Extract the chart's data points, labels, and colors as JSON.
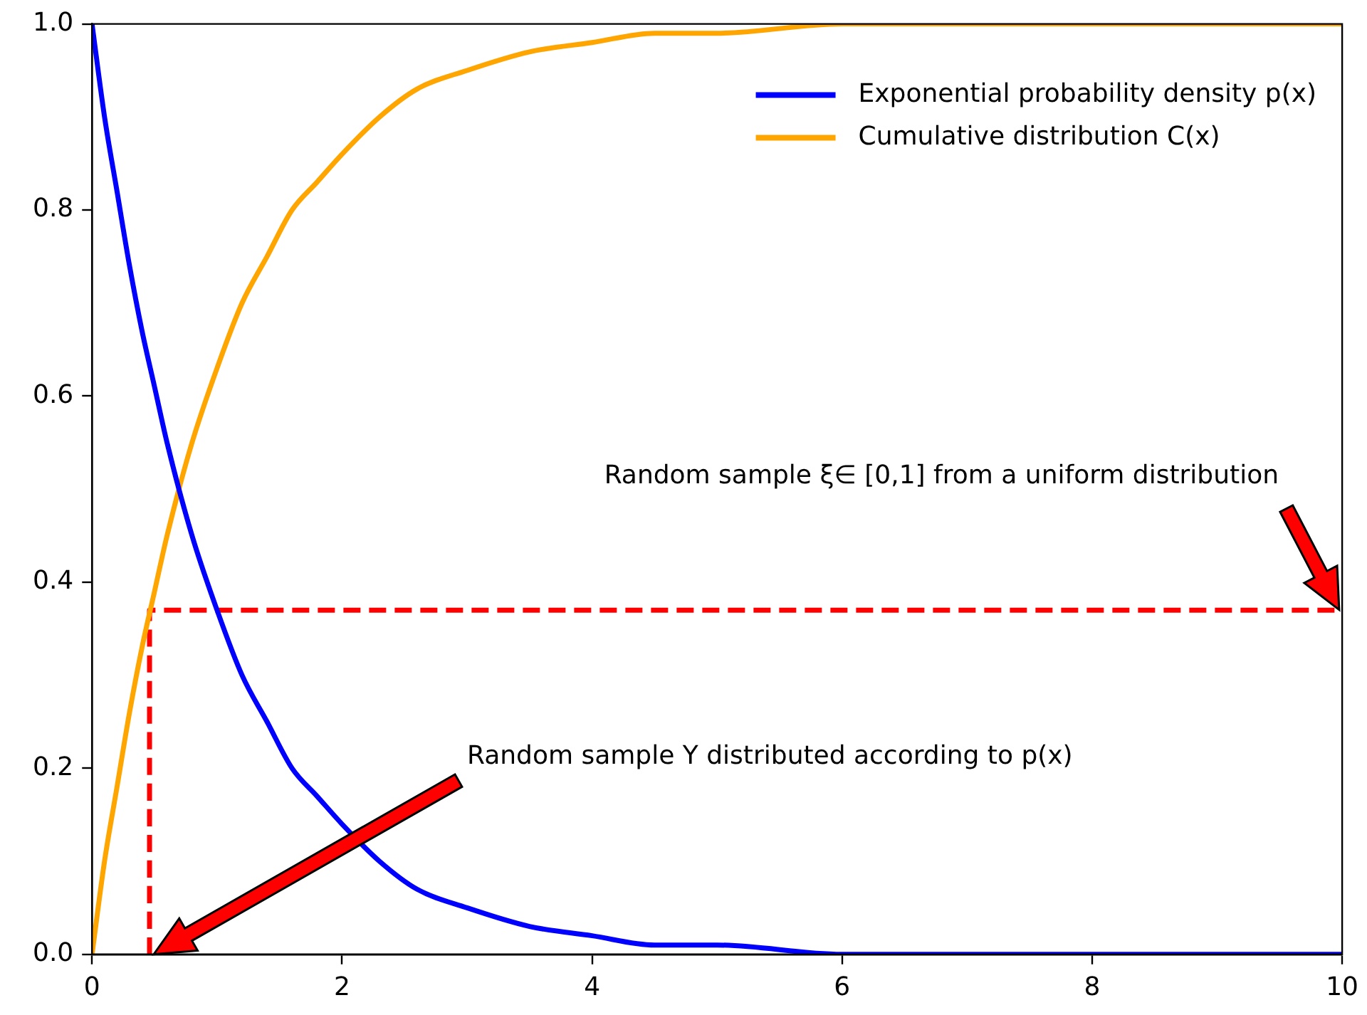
{
  "chart_data": {
    "type": "line",
    "legend": "top right",
    "marker": "none",
    "grid": false,
    "xlim": [
      0,
      10
    ],
    "ylim": [
      0,
      1
    ],
    "xticks": [
      0,
      2,
      4,
      6,
      8,
      10
    ],
    "yticks": [
      {
        "value": 0,
        "label": "0.0"
      },
      {
        "value": 0.2,
        "label": "0.2"
      },
      {
        "value": 0.4,
        "label": "0.4"
      },
      {
        "value": 0.6,
        "label": "0.6"
      },
      {
        "value": 0.8,
        "label": "0.8"
      },
      {
        "value": 1,
        "label": "1.0"
      }
    ],
    "series": [
      {
        "name": "Exponential probability density p(x)",
        "color": "#0000ff",
        "x": [
          0,
          0.1,
          0.2,
          0.3,
          0.4,
          0.5,
          0.6,
          0.8,
          1,
          1.2,
          1.4,
          1.6,
          1.8,
          2,
          2.3,
          2.6,
          3,
          3.5,
          4,
          4.5,
          5,
          6,
          7,
          8,
          10
        ],
        "values": [
          1,
          0.9,
          0.82,
          0.74,
          0.67,
          0.61,
          0.55,
          0.45,
          0.37,
          0.3,
          0.25,
          0.2,
          0.17,
          0.14,
          0.1,
          0.07,
          0.05,
          0.03,
          0.02,
          0.01,
          0.01,
          0,
          0,
          0,
          0
        ]
      },
      {
        "name": "Cumulative distribution C(x)",
        "color": "#ffa500",
        "x": [
          0,
          0.1,
          0.2,
          0.3,
          0.4,
          0.5,
          0.6,
          0.8,
          1,
          1.2,
          1.4,
          1.6,
          1.8,
          2,
          2.3,
          2.6,
          3,
          3.5,
          4,
          4.5,
          5,
          6,
          7,
          8,
          10
        ],
        "values": [
          0,
          0.1,
          0.18,
          0.26,
          0.33,
          0.39,
          0.45,
          0.55,
          0.63,
          0.7,
          0.75,
          0.8,
          0.83,
          0.86,
          0.9,
          0.93,
          0.95,
          0.97,
          0.98,
          0.99,
          0.99,
          1,
          1,
          1,
          1
        ]
      },
      {
        "color": "#ff0000",
        "line_style": "dashed",
        "x": [
          0.46,
          0.46,
          10
        ],
        "values": [
          0,
          0.37,
          0.37
        ]
      }
    ],
    "annotations": [
      "Random sample ξ∈ [0,1] from a uniform distribution",
      "Random sample Y distributed according to p(x)"
    ]
  }
}
